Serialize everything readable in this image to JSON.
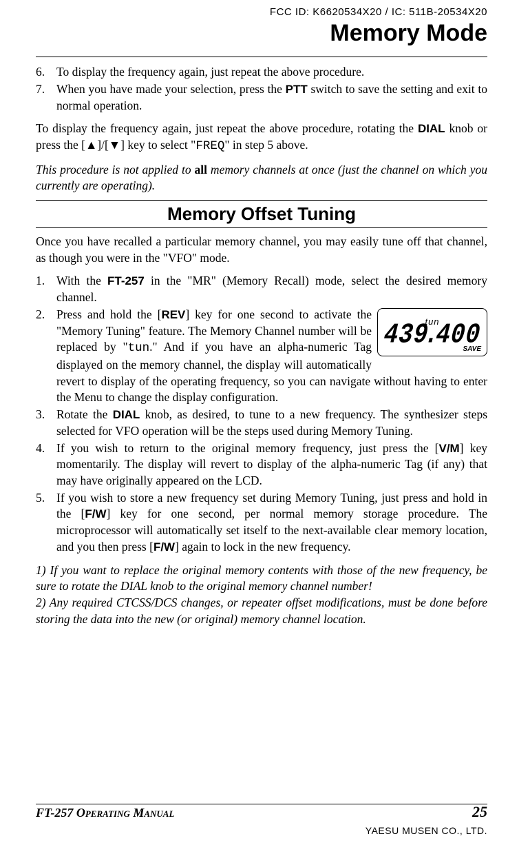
{
  "header": {
    "fcc_line": "FCC ID: K6620534X20 / IC: 511B-20534X20",
    "title": "Memory Mode"
  },
  "list1": [
    {
      "n": "6.",
      "text": "To display the frequency again, just repeat the above procedure."
    },
    {
      "n": "7.",
      "html": "When you have made your selection, press the <span class='bold'>PTT</span> switch to save the setting and exit to normal operation."
    }
  ],
  "para1_html": "To display the frequency again, just repeat the above procedure, rotating the <span class='bold'>DIAL</span> knob or press the [<span class='arrow'>▲</span>]/[<span class='arrow'>▼</span>] key to select \"<span class='mono-disp'>FREQ</span>\" in step 5 above.",
  "ital1_html": "This procedure is not applied to <span style='font-weight:bold;font-style:normal'>all</span> memory channels at once (just the channel on which you currently are operating).",
  "section_title": "Memory Offset Tuning",
  "para2": "Once you have recalled a particular memory channel, you may easily tune off that channel, as though you were in the \"VFO\" mode.",
  "list2": [
    {
      "n": "1.",
      "html": "With the <span class='bold'>FT-257</span> in the \"MR\" (Memory Recall) mode, select the desired memory channel."
    },
    {
      "n": "2.",
      "html": "Press and hold the [<span class='bold'>REV</span>] key for one second to activate the \"Memory Tuning\" feature. The Memory Channel number will be replaced by \"<span class='mono-disp'>tun</span>.\" And if you have an alpha-numeric Tag displayed on the memory channel, the display will automatically revert to display of the operating frequency, so you can navigate without having to enter the Menu to change the display configuration.",
      "has_lcd": true
    },
    {
      "n": "3.",
      "html": "Rotate the <span class='bold'>DIAL</span> knob, as desired, to tune to a new frequency. The synthesizer steps selected for VFO operation will be the steps used during Memory Tuning."
    },
    {
      "n": "4.",
      "html": "If you wish to return to the original memory frequency, just press the [<span class='bold'>V/M</span>] key momentarily. The display will revert to display of the alpha-numeric Tag (if any) that may have originally appeared on the LCD."
    },
    {
      "n": "5.",
      "html": "If you wish to store a new frequency set during Memory Tuning, just press and hold in the [<span class='bold'>F/W</span>] key for one second, per normal memory storage procedure. The microprocessor will automatically set itself to the next-available clear memory location, and you then press [<span class='bold'>F/W</span>] again to lock in the new frequency."
    }
  ],
  "ital2_html": "1) If you want to replace the original memory contents with those of the new frequency, be sure to rotate the DIAL knob to the original memory channel number!<br>2) Any required CTCSS/DCS changes, or repeater offset modifications, must be done before storing the data into the new (or original) memory channel location.",
  "lcd": {
    "small": "tun",
    "main": "439.400",
    "save": "SAVE"
  },
  "footer": {
    "left_model": "FT-257",
    "left_rest": " Operating Manual",
    "page": "25",
    "yaesu": "YAESU MUSEN CO., LTD."
  }
}
